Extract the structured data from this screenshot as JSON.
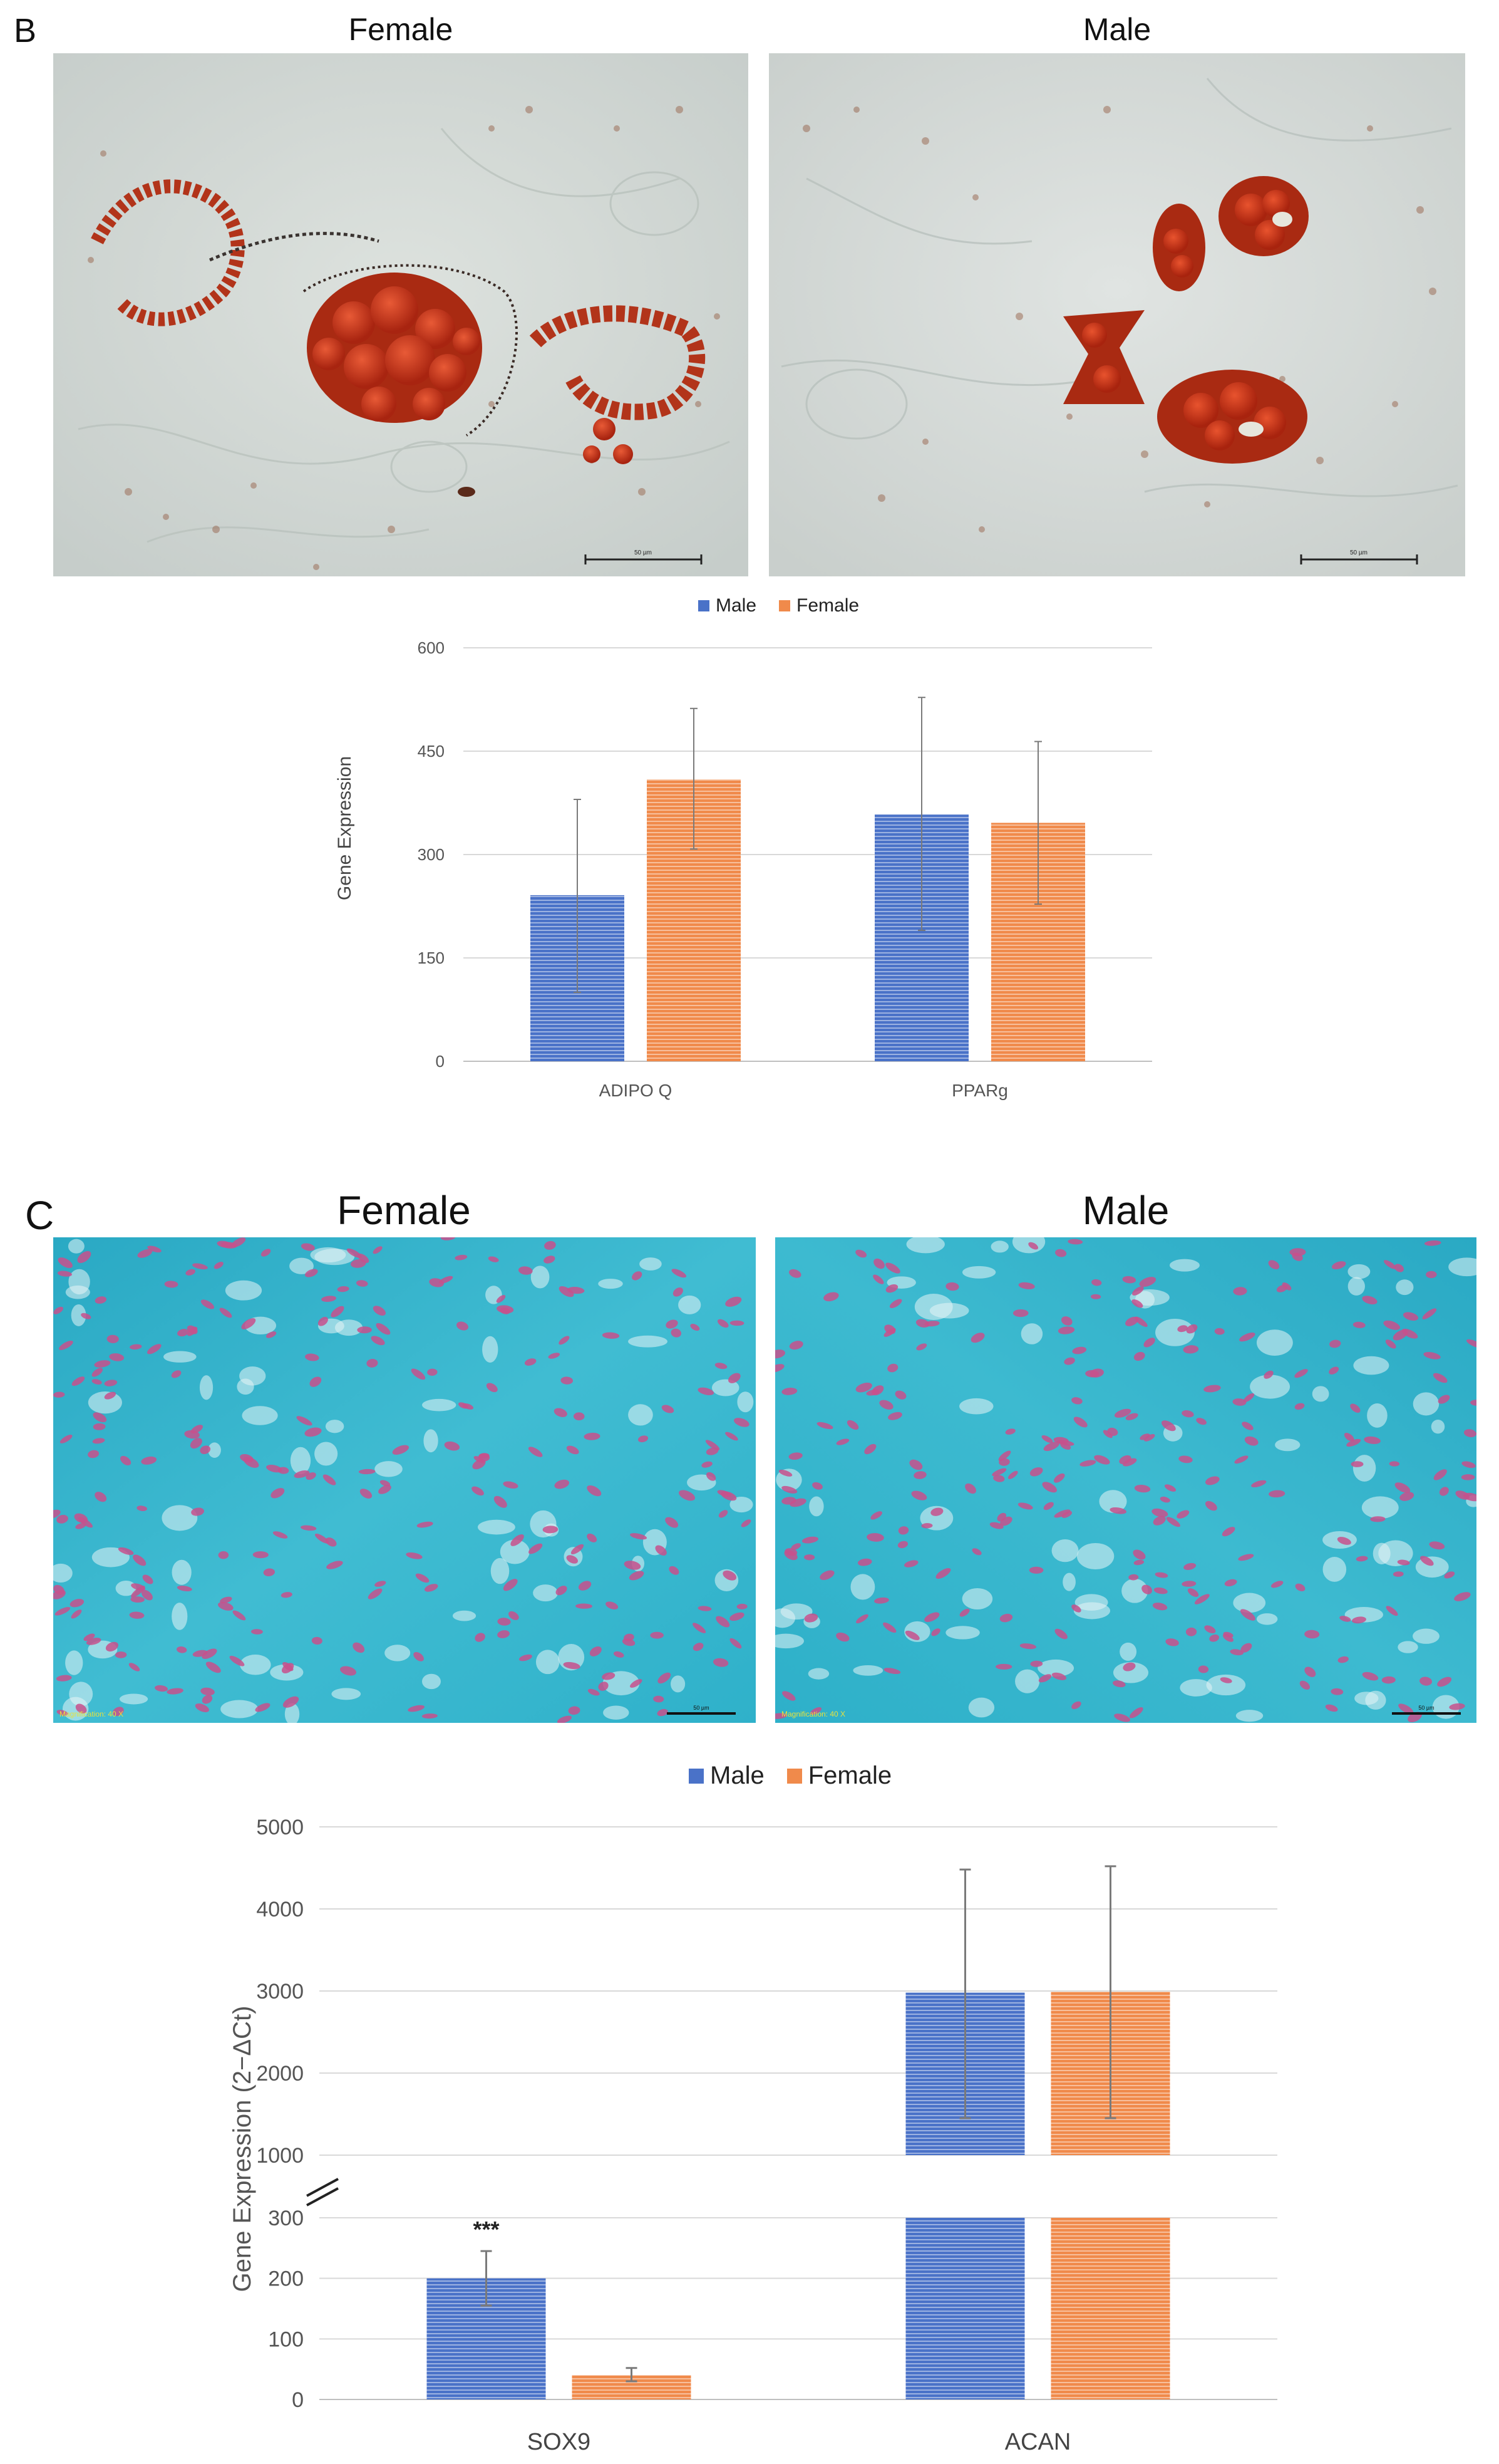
{
  "colors": {
    "male": "#4a72c8",
    "female": "#f08a4b",
    "grid": "#d9d9d9",
    "axis": "#bfbfbf",
    "error": "#7a7a7a",
    "cartilage": "#35b4cc",
    "nucleus": "#c8508c",
    "oil_red": "#c83a1e",
    "bg_b": "#d4dad6"
  },
  "panel_b": {
    "letter": "B",
    "micrographs": [
      {
        "title": "Female",
        "scale_text": "50 µm"
      },
      {
        "title": "Male",
        "scale_text": "50 µm"
      }
    ]
  },
  "panel_c": {
    "letter": "C",
    "micrographs": [
      {
        "title": "Female",
        "stamp": "Magnification: 40 X",
        "scale_text": "50 µm"
      },
      {
        "title": "Male",
        "stamp": "Magnification: 40 X",
        "scale_text": "50 µm"
      }
    ]
  },
  "chart_data": [
    {
      "type": "bar",
      "legend": [
        "Male",
        "Female"
      ],
      "categories": [
        "ADIPO Q",
        "PPARg"
      ],
      "series": [
        {
          "name": "Male",
          "values": [
            241,
            358
          ],
          "error_low": [
            100,
            190
          ],
          "error_high": [
            380,
            528
          ]
        },
        {
          "name": "Female",
          "values": [
            409,
            346
          ],
          "error_low": [
            308,
            228
          ],
          "error_high": [
            512,
            464
          ]
        }
      ],
      "title": "",
      "xlabel": "",
      "ylabel": "Gene Expression",
      "ylim": [
        0,
        600
      ],
      "yticks": [
        "0",
        "150",
        "300",
        "450",
        "600"
      ],
      "grid": true,
      "legend_position": "top-center"
    },
    {
      "type": "bar",
      "legend": [
        "Male",
        "Female"
      ],
      "categories": [
        "SOX9",
        "ACAN"
      ],
      "series": [
        {
          "name": "Male",
          "values": [
            200,
            2980
          ],
          "error_low": [
            155,
            1450
          ],
          "error_high": [
            245,
            4480
          ]
        },
        {
          "name": "Female",
          "values": [
            40,
            2990
          ],
          "error_low": [
            30,
            1450
          ],
          "error_high": [
            52,
            4520
          ]
        }
      ],
      "annotation": {
        "text": "***",
        "category": "SOX9",
        "series": "Male"
      },
      "title": "",
      "xlabel": "",
      "ylabel": "Gene Expression (2−ΔCt)",
      "ylim": [
        0,
        5000
      ],
      "axis_break": {
        "lower_range": [
          0,
          300
        ],
        "upper_range": [
          1000,
          5000
        ]
      },
      "yticks_lower": [
        "0",
        "100",
        "200",
        "300"
      ],
      "yticks_upper": [
        "1000",
        "2000",
        "3000",
        "4000",
        "5000"
      ],
      "grid": true,
      "legend_position": "top-center"
    }
  ]
}
